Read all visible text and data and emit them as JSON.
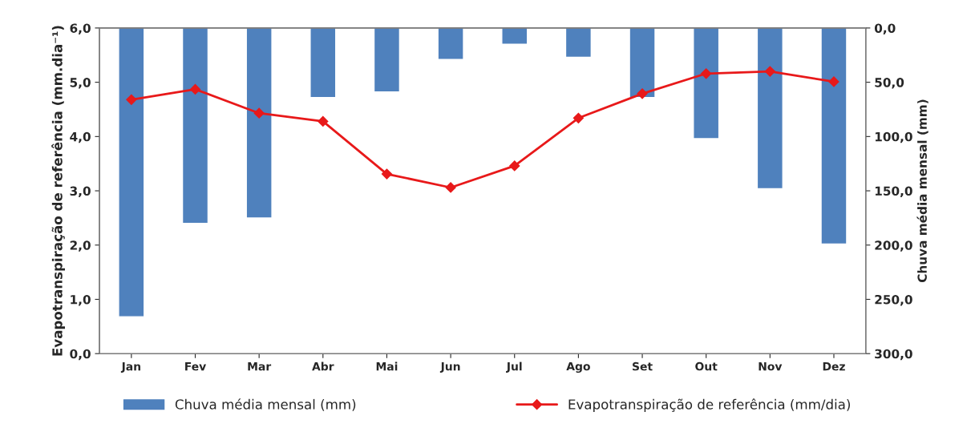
{
  "chart_data": {
    "type": "bar",
    "categories": [
      "Jan",
      "Fev",
      "Mar",
      "Abr",
      "Mai",
      "Jun",
      "Jul",
      "Ago",
      "Set",
      "Out",
      "Nov",
      "Dez"
    ],
    "ylabel": "Evapotranspiração de referência (mm.dia⁻¹)",
    "y2label": "Chuva média mensal (mm)",
    "series": [
      {
        "name": "Chuva média mensal (mm)",
        "axis": "y2",
        "color": "#4f81bd",
        "values": [
          266,
          180,
          175,
          64,
          59,
          29,
          15,
          27,
          64,
          102,
          148,
          199
        ]
      },
      {
        "name": "Evapotranspiração de referência (mm/dia)",
        "type": "line",
        "color": "#e8191a",
        "marker": "diamond",
        "values": [
          4.68,
          4.87,
          4.43,
          4.28,
          3.31,
          3.06,
          3.46,
          4.34,
          4.79,
          5.16,
          5.2,
          5.01
        ]
      }
    ],
    "ylim": [
      0,
      6
    ],
    "yticks": [
      {
        "value": 0,
        "label": "0,0"
      },
      {
        "value": 1,
        "label": "1,0"
      },
      {
        "value": 2,
        "label": "2,0"
      },
      {
        "value": 3,
        "label": "3,0"
      },
      {
        "value": 4,
        "label": "4,0"
      },
      {
        "value": 5,
        "label": "5,0"
      },
      {
        "value": 6,
        "label": "6,0"
      }
    ],
    "y2lim": [
      300,
      0
    ],
    "y2ticks": [
      {
        "value": 0,
        "label": "0,0"
      },
      {
        "value": 50,
        "label": "50,0"
      },
      {
        "value": 100,
        "label": "100,0"
      },
      {
        "value": 150,
        "label": "150,0"
      },
      {
        "value": 200,
        "label": "200,0"
      },
      {
        "value": 250,
        "label": "250,0"
      },
      {
        "value": 300,
        "label": "300,0"
      }
    ],
    "grid": false,
    "legend": "bottom"
  }
}
